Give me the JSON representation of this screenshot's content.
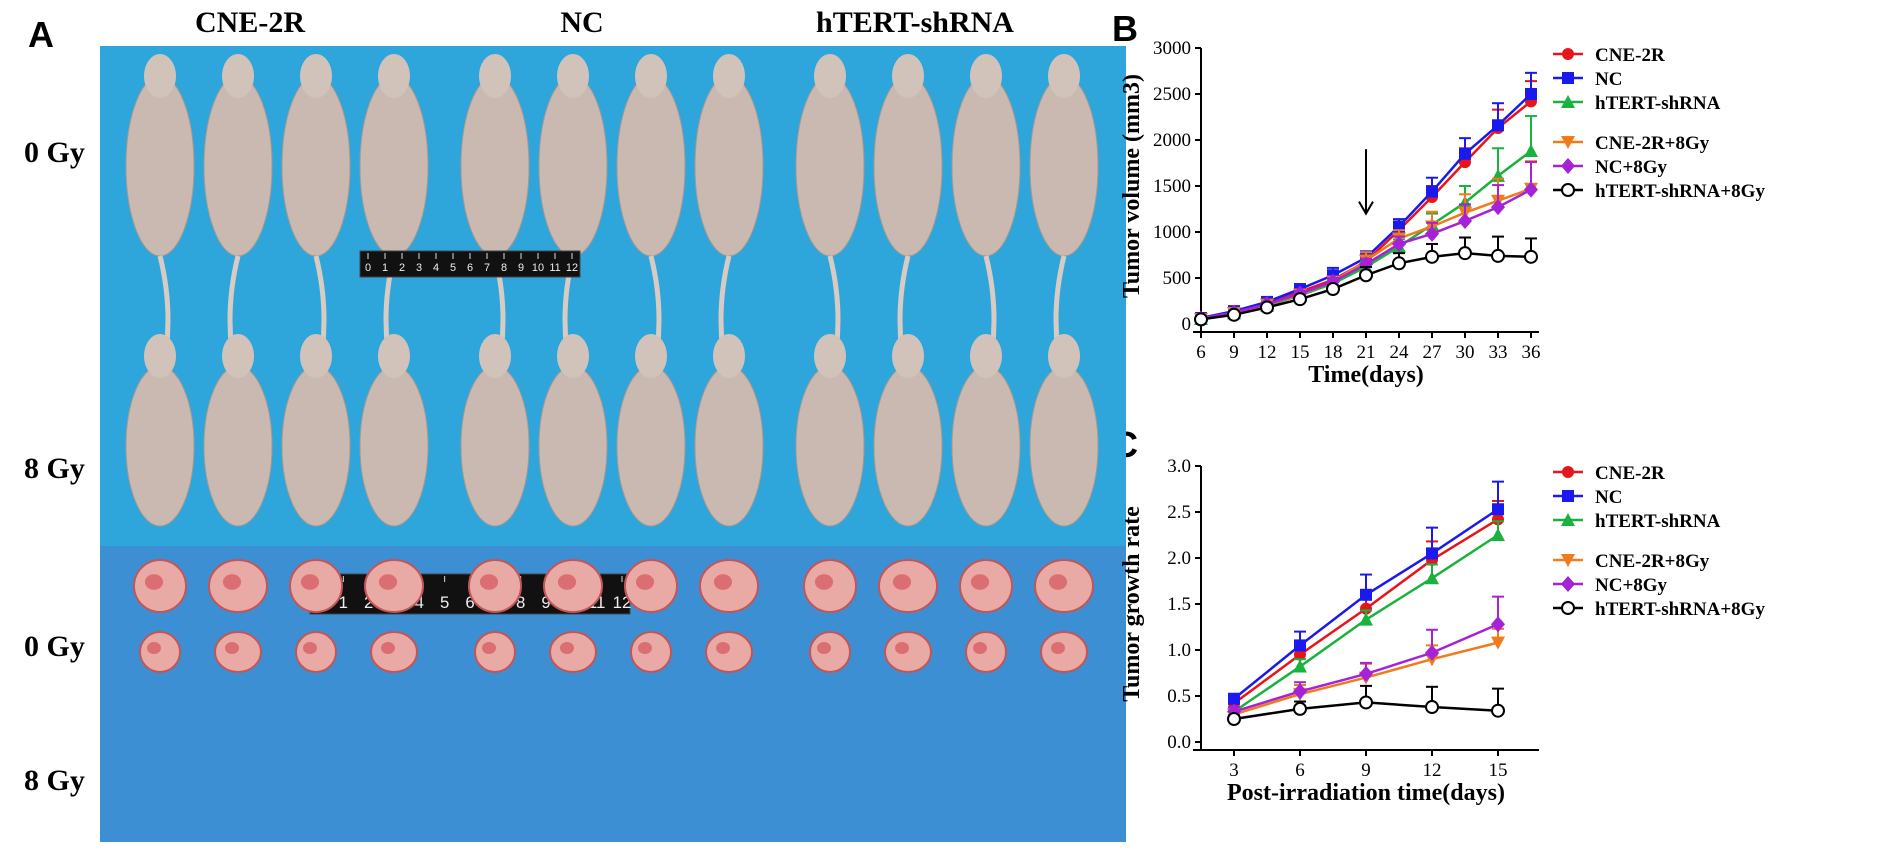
{
  "panels": {
    "a": "A",
    "b": "B",
    "c": "C"
  },
  "photo": {
    "group_labels": [
      "CNE-2R",
      "NC",
      "hTERT-shRNA"
    ],
    "row_labels": [
      "0 Gy",
      "8 Gy",
      "0 Gy",
      "8 Gy"
    ],
    "ruler_ticks": [
      "0",
      "1",
      "2",
      "3",
      "4",
      "5",
      "6",
      "7",
      "8",
      "9",
      "10",
      "11",
      "12"
    ]
  },
  "colors": {
    "red": "#e8141b",
    "blue": "#1a1aee",
    "green": "#18b23c",
    "orange": "#f07a1c",
    "purple": "#a522d6",
    "black": "#000000",
    "background_blue": "#2ea6dc",
    "tray_blue": "#3d8fd4"
  },
  "chart_data": [
    {
      "type": "line",
      "ylabel": "Tumor volume (mm3)",
      "xlabel": "Time(days)",
      "x": [
        6,
        9,
        12,
        15,
        18,
        21,
        24,
        27,
        30,
        33,
        36
      ],
      "xlim": [
        6,
        36
      ],
      "ylim": [
        0,
        3000
      ],
      "yticks": [
        0,
        500,
        1000,
        1500,
        2000,
        2500,
        3000
      ],
      "legend_position": "right",
      "annotation": "arrow at day 21",
      "series": [
        {
          "name": "CNE-2R",
          "color": "#e8141b",
          "marker": "circle",
          "values": [
            60,
            130,
            220,
            350,
            480,
            680,
            1020,
            1380,
            1760,
            2130,
            2420
          ],
          "errors": [
            10,
            15,
            25,
            30,
            40,
            60,
            70,
            120,
            150,
            200,
            220
          ]
        },
        {
          "name": "NC",
          "color": "#1a1aee",
          "marker": "square",
          "values": [
            65,
            140,
            240,
            380,
            530,
            720,
            1060,
            1440,
            1850,
            2160,
            2500
          ],
          "errors": [
            10,
            15,
            25,
            40,
            80,
            70,
            80,
            150,
            170,
            240,
            230
          ]
        },
        {
          "name": "hTERT-shRNA",
          "color": "#18b23c",
          "marker": "triangle-up",
          "values": [
            55,
            115,
            200,
            310,
            440,
            620,
            840,
            1080,
            1320,
            1610,
            1880
          ],
          "errors": [
            10,
            15,
            20,
            30,
            40,
            60,
            80,
            120,
            180,
            300,
            380
          ]
        },
        {
          "name": "CNE-2R+8Gy",
          "color": "#f07a1c",
          "marker": "triangle-down",
          "values": [
            55,
            120,
            210,
            320,
            460,
            690,
            930,
            1060,
            1210,
            1340,
            1470
          ],
          "errors": [
            10,
            15,
            20,
            30,
            40,
            90,
            90,
            160,
            200,
            240,
            300
          ]
        },
        {
          "name": "NC+8Gy",
          "color": "#a522d6",
          "marker": "diamond",
          "values": [
            60,
            125,
            215,
            330,
            460,
            650,
            870,
            980,
            1120,
            1270,
            1460
          ],
          "errors": [
            10,
            15,
            20,
            30,
            40,
            60,
            80,
            120,
            180,
            240,
            300
          ]
        },
        {
          "name": "hTERT-shRNA+8Gy",
          "color": "#000000",
          "marker": "open-circle",
          "values": [
            50,
            100,
            180,
            270,
            380,
            530,
            660,
            730,
            770,
            740,
            730
          ],
          "errors": [
            10,
            15,
            20,
            30,
            40,
            90,
            110,
            140,
            170,
            210,
            200
          ]
        }
      ]
    },
    {
      "type": "line",
      "ylabel": "Tumor growth rate",
      "xlabel": "Post-irradiation time(days)",
      "x": [
        3,
        6,
        9,
        12,
        15
      ],
      "xlim": [
        1.5,
        16.5
      ],
      "ylim": [
        0,
        3.0
      ],
      "yticks": [
        0.0,
        0.5,
        1.0,
        1.5,
        2.0,
        2.5,
        3.0
      ],
      "legend_position": "right",
      "series": [
        {
          "name": "CNE-2R",
          "color": "#e8141b",
          "marker": "circle",
          "values": [
            0.42,
            0.95,
            1.45,
            1.98,
            2.42
          ],
          "errors": [
            0.04,
            0.08,
            0.15,
            0.2,
            0.2
          ]
        },
        {
          "name": "NC",
          "color": "#1a1aee",
          "marker": "square",
          "values": [
            0.47,
            1.05,
            1.6,
            2.05,
            2.53
          ],
          "errors": [
            0.05,
            0.15,
            0.22,
            0.28,
            0.3
          ]
        },
        {
          "name": "hTERT-shRNA",
          "color": "#18b23c",
          "marker": "triangle-up",
          "values": [
            0.33,
            0.82,
            1.33,
            1.78,
            2.25
          ],
          "errors": [
            0.04,
            0.08,
            0.1,
            0.15,
            0.15
          ]
        },
        {
          "name": "CNE-2R+8Gy",
          "color": "#f07a1c",
          "marker": "triangle-down",
          "values": [
            0.3,
            0.52,
            0.7,
            0.9,
            1.08
          ],
          "errors": [
            0.05,
            0.1,
            0.15,
            0.15,
            0.15
          ]
        },
        {
          "name": "NC+8Gy",
          "color": "#a522d6",
          "marker": "diamond",
          "values": [
            0.33,
            0.55,
            0.74,
            0.97,
            1.28
          ],
          "errors": [
            0.05,
            0.1,
            0.12,
            0.25,
            0.3
          ]
        },
        {
          "name": "hTERT-shRNA+8Gy",
          "color": "#000000",
          "marker": "open-circle",
          "values": [
            0.25,
            0.36,
            0.43,
            0.38,
            0.34
          ],
          "errors": [
            0.04,
            0.08,
            0.18,
            0.22,
            0.24
          ]
        }
      ]
    }
  ]
}
